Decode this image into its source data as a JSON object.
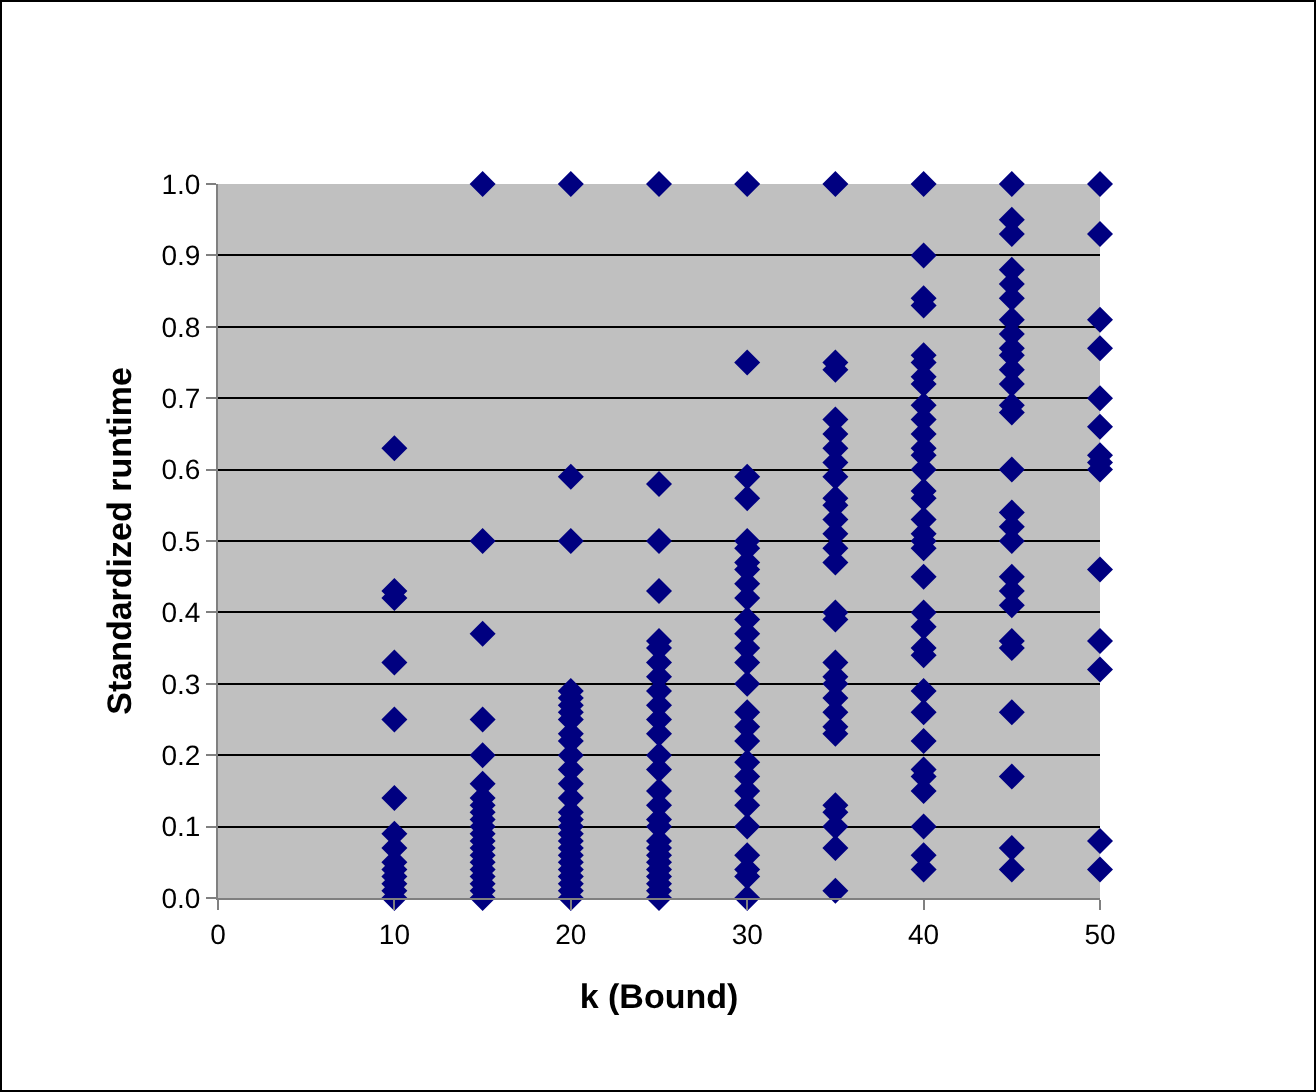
{
  "chart_data": {
    "type": "scatter",
    "xlabel": "k (Bound)",
    "ylabel": "Standardized runtime",
    "xlim": [
      0,
      50
    ],
    "xticks": [
      0,
      10,
      20,
      30,
      40,
      50
    ],
    "ylim": [
      0,
      1
    ],
    "yticks": [
      {
        "value": 0,
        "label": "0.0"
      },
      0.1,
      0.2,
      0.3,
      0.4,
      0.5,
      0.6,
      0.7,
      0.8,
      0.9,
      {
        "value": 1,
        "label": "1.0"
      }
    ],
    "grid": "y",
    "marker": "diamond",
    "series": [
      {
        "color": "#000080",
        "x": [
          10,
          10,
          10,
          10,
          10,
          10,
          10,
          10,
          10,
          10,
          10,
          10,
          10,
          10,
          15,
          15,
          15,
          15,
          15,
          15,
          15,
          15,
          15,
          15,
          15,
          15,
          15,
          15,
          15,
          15,
          15,
          15,
          15,
          15,
          15,
          20,
          20,
          20,
          20,
          20,
          20,
          20,
          20,
          20,
          20,
          20,
          20,
          20,
          20,
          20,
          20,
          20,
          20,
          20,
          20,
          20,
          20,
          20,
          20,
          20,
          20,
          20,
          25,
          25,
          25,
          25,
          25,
          25,
          25,
          25,
          25,
          25,
          25,
          25,
          25,
          25,
          25,
          25,
          25,
          25,
          25,
          25,
          25,
          25,
          25,
          25,
          25,
          25,
          25,
          30,
          30,
          30,
          30,
          30,
          30,
          30,
          30,
          30,
          30,
          30,
          30,
          30,
          30,
          30,
          30,
          30,
          30,
          30,
          30,
          30,
          30,
          30,
          30,
          30,
          30,
          30,
          35,
          35,
          35,
          35,
          35,
          35,
          35,
          35,
          35,
          35,
          35,
          35,
          35,
          35,
          35,
          35,
          35,
          35,
          35,
          35,
          35,
          35,
          35,
          35,
          35,
          35,
          35,
          35,
          40,
          40,
          40,
          40,
          40,
          40,
          40,
          40,
          40,
          40,
          40,
          40,
          40,
          40,
          40,
          40,
          40,
          40,
          40,
          40,
          40,
          40,
          40,
          40,
          40,
          40,
          40,
          40,
          40,
          40,
          40,
          40,
          40,
          40,
          45,
          45,
          45,
          45,
          45,
          45,
          45,
          45,
          45,
          45,
          45,
          45,
          45,
          45,
          45,
          45,
          45,
          45,
          45,
          45,
          45,
          45,
          45,
          45,
          45,
          45,
          45,
          50,
          50,
          50,
          50,
          50,
          50,
          50,
          50,
          50,
          50,
          50,
          50,
          50,
          50
        ],
        "values": [
          0.63,
          0.43,
          0.42,
          0.33,
          0.25,
          0.14,
          0.09,
          0.07,
          0.05,
          0.04,
          0.03,
          0.02,
          0.01,
          0.0,
          1.0,
          0.5,
          0.37,
          0.25,
          0.2,
          0.16,
          0.14,
          0.13,
          0.12,
          0.11,
          0.1,
          0.09,
          0.08,
          0.07,
          0.06,
          0.05,
          0.04,
          0.03,
          0.02,
          0.01,
          0.0,
          1.0,
          0.59,
          0.5,
          0.29,
          0.28,
          0.27,
          0.26,
          0.25,
          0.23,
          0.22,
          0.2,
          0.18,
          0.16,
          0.14,
          0.12,
          0.11,
          0.1,
          0.09,
          0.08,
          0.07,
          0.06,
          0.05,
          0.04,
          0.03,
          0.02,
          0.01,
          0.0,
          1.0,
          0.58,
          0.5,
          0.43,
          0.36,
          0.35,
          0.33,
          0.31,
          0.29,
          0.27,
          0.25,
          0.23,
          0.2,
          0.18,
          0.15,
          0.13,
          0.11,
          0.1,
          0.08,
          0.07,
          0.06,
          0.05,
          0.04,
          0.03,
          0.02,
          0.01,
          0.0,
          1.0,
          0.75,
          0.59,
          0.56,
          0.5,
          0.49,
          0.47,
          0.46,
          0.44,
          0.42,
          0.39,
          0.37,
          0.35,
          0.33,
          0.3,
          0.26,
          0.24,
          0.22,
          0.19,
          0.17,
          0.15,
          0.13,
          0.1,
          0.06,
          0.04,
          0.03,
          0.0,
          1.0,
          0.75,
          0.74,
          0.67,
          0.65,
          0.63,
          0.61,
          0.59,
          0.56,
          0.55,
          0.53,
          0.51,
          0.49,
          0.47,
          0.4,
          0.39,
          0.33,
          0.31,
          0.3,
          0.28,
          0.26,
          0.24,
          0.23,
          0.13,
          0.12,
          0.1,
          0.07,
          0.01,
          1.0,
          0.9,
          0.84,
          0.83,
          0.76,
          0.75,
          0.73,
          0.72,
          0.69,
          0.67,
          0.65,
          0.63,
          0.62,
          0.6,
          0.57,
          0.56,
          0.53,
          0.51,
          0.5,
          0.49,
          0.45,
          0.4,
          0.38,
          0.35,
          0.34,
          0.29,
          0.26,
          0.22,
          0.18,
          0.17,
          0.15,
          0.1,
          0.06,
          0.04,
          1.0,
          0.95,
          0.93,
          0.88,
          0.86,
          0.84,
          0.81,
          0.79,
          0.77,
          0.76,
          0.74,
          0.72,
          0.69,
          0.68,
          0.6,
          0.54,
          0.52,
          0.5,
          0.45,
          0.43,
          0.41,
          0.36,
          0.35,
          0.26,
          0.17,
          0.07,
          0.04,
          1.0,
          0.93,
          0.81,
          0.77,
          0.7,
          0.66,
          0.62,
          0.61,
          0.6,
          0.46,
          0.36,
          0.32,
          0.08,
          0.04
        ]
      }
    ]
  }
}
